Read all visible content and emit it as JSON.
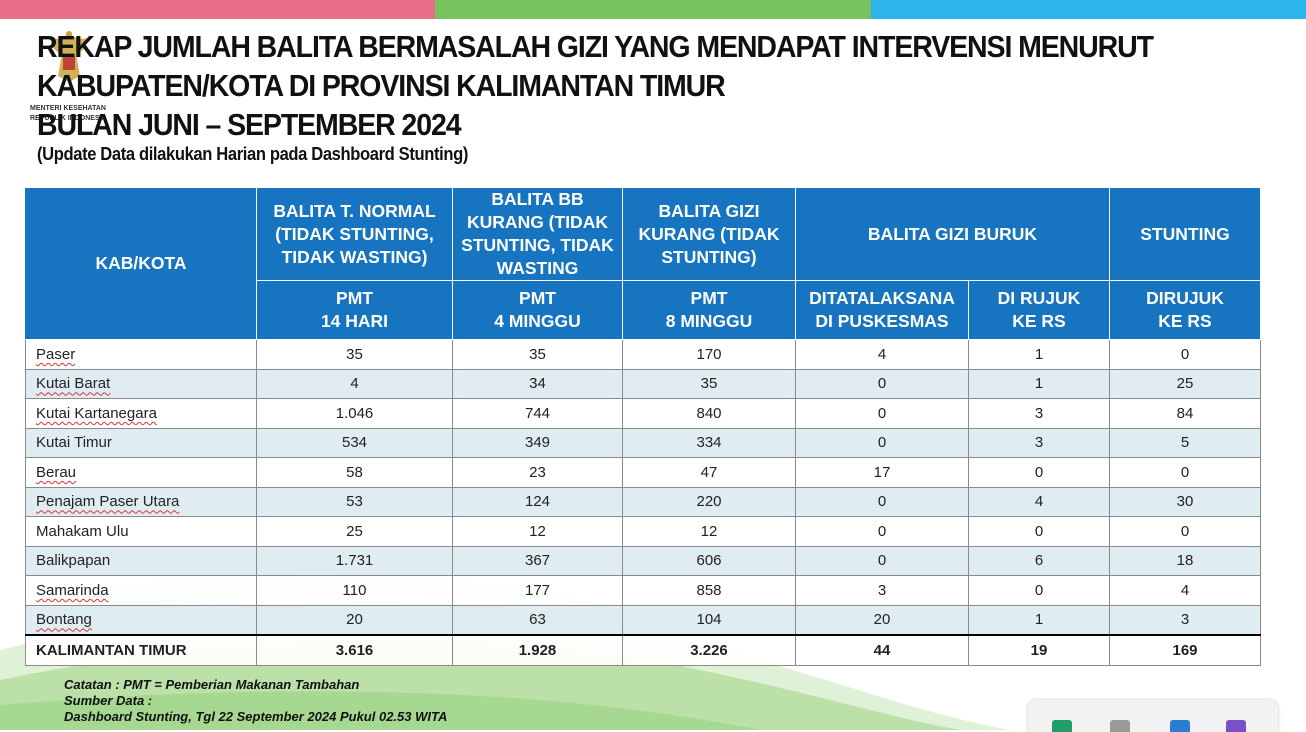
{
  "title_lines": [
    "REKAP JUMLAH BALITA BERMASALAH GIZI YANG MENDAPAT INTERVENSI MENURUT",
    "KABUPATEN/KOTA DI PROVINSI KALIMANTAN TIMUR",
    "BULAN JUNI – SEPTEMBER 2024"
  ],
  "subtitle": "(Update Data dilakukan Harian pada Dashboard Stunting)",
  "logo": {
    "line1": "MENTERI KESEHATAN",
    "line2": "REPUBLIK INDONESIA",
    "icon": "garuda-emblem-icon"
  },
  "colors": {
    "header_blue": "#1774c0",
    "stripe_pink": "#e96f88",
    "stripe_green": "#79c35e",
    "stripe_cyan": "#2cb5e8",
    "row_alt": "#dcecf2"
  },
  "table": {
    "kab_header": "KAB/KOTA",
    "top_headers": [
      "BALITA T. NORMAL (TIDAK STUNTING, TIDAK WASTING)",
      "BALITA BB KURANG (TIDAK STUNTING, TIDAK WASTING",
      "BALITA GIZI KURANG (TIDAK STUNTING)",
      "BALITA GIZI BURUK",
      "STUNTING"
    ],
    "sub_headers": [
      [
        "PMT",
        "14 HARI"
      ],
      [
        "PMT",
        "4 MINGGU"
      ],
      [
        "PMT",
        "8 MINGGU"
      ],
      [
        "DITATALAKSANA",
        "DI PUSKESMAS"
      ],
      [
        "DI RUJUK",
        "KE RS"
      ],
      [
        "DIRUJUK",
        "KE RS"
      ]
    ],
    "rows": [
      {
        "name": "Paser",
        "values": [
          "35",
          "35",
          "170",
          "4",
          "1",
          "0"
        ]
      },
      {
        "name": "Kutai Barat",
        "values": [
          "4",
          "34",
          "35",
          "0",
          "1",
          "25"
        ]
      },
      {
        "name": "Kutai Kartanegara",
        "values": [
          "1.046",
          "744",
          "840",
          "0",
          "3",
          "84"
        ]
      },
      {
        "name": "Kutai Timur",
        "values": [
          "534",
          "349",
          "334",
          "0",
          "3",
          "5"
        ]
      },
      {
        "name": "Berau",
        "values": [
          "58",
          "23",
          "47",
          "17",
          "0",
          "0"
        ]
      },
      {
        "name": "Penajam Paser Utara",
        "values": [
          "53",
          "124",
          "220",
          "0",
          "4",
          "30"
        ]
      },
      {
        "name": "Mahakam Ulu",
        "values": [
          "25",
          "12",
          "12",
          "0",
          "0",
          "0"
        ]
      },
      {
        "name": "Balikpapan",
        "values": [
          "1.731",
          "367",
          "606",
          "0",
          "6",
          "18"
        ]
      },
      {
        "name": "Samarinda",
        "values": [
          "110",
          "177",
          "858",
          "3",
          "0",
          "4"
        ]
      },
      {
        "name": "Bontang",
        "values": [
          "20",
          "63",
          "104",
          "20",
          "1",
          "3"
        ]
      }
    ],
    "total": {
      "name": "KALIMANTAN  TIMUR",
      "values": [
        "3.616",
        "1.928",
        "3.226",
        "44",
        "19",
        "169"
      ]
    }
  },
  "notes": [
    "Catatan : PMT = Pemberian Makanan Tambahan",
    "Sumber Data :",
    "Dashboard Stunting, Tgl 22 September 2024 Pukul 02.53 WITA"
  ],
  "taskbar": {
    "icons": [
      "spreadsheet-app-icon",
      "presentation-app-icon",
      "word-app-icon",
      "media-app-icon"
    ]
  }
}
